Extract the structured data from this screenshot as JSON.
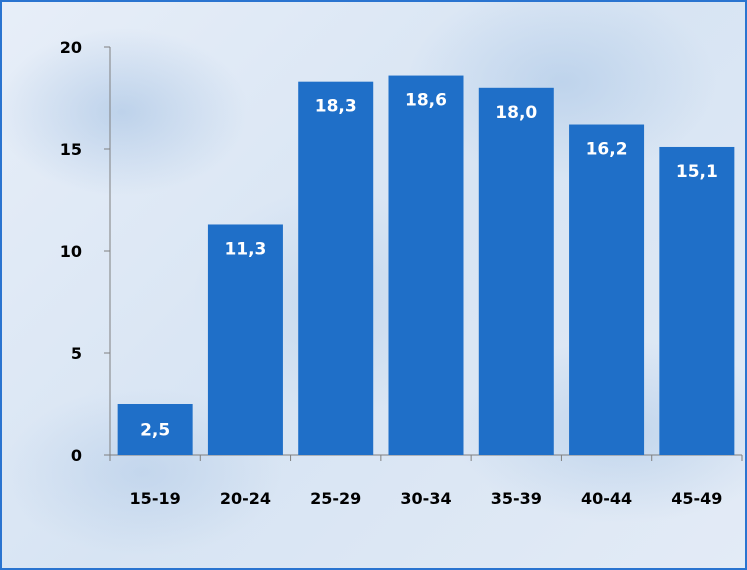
{
  "chart_data": {
    "type": "bar",
    "title": "",
    "xlabel": "",
    "ylabel": "",
    "categories": [
      "15-19",
      "20-24",
      "25-29",
      "30-34",
      "35-39",
      "40-44",
      "45-49"
    ],
    "values": [
      2.5,
      11.3,
      18.3,
      18.6,
      18.0,
      16.2,
      15.1
    ],
    "value_labels": [
      "2,5",
      "11,3",
      "18,3",
      "18,6",
      "18,0",
      "16,2",
      "15,1"
    ],
    "ylim": [
      0,
      20
    ],
    "yticks": [
      0,
      5,
      10,
      15,
      20
    ],
    "ytick_labels": [
      "0",
      "5",
      "10",
      "15",
      "20"
    ],
    "bar_color": "#1f6fc8",
    "grid": false,
    "legend": "none"
  }
}
